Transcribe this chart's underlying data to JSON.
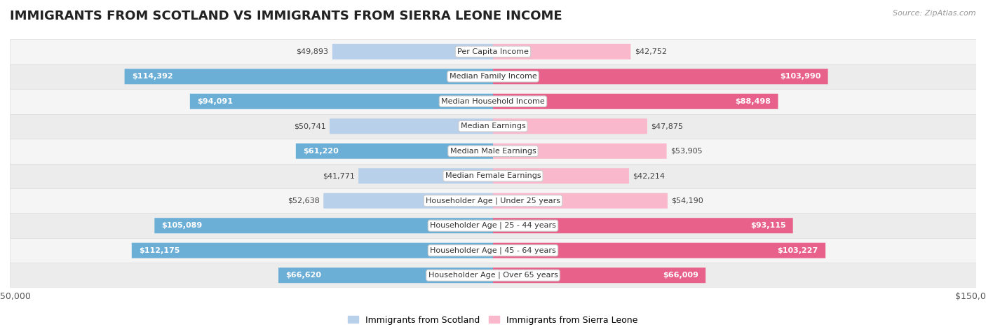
{
  "title": "IMMIGRANTS FROM SCOTLAND VS IMMIGRANTS FROM SIERRA LEONE INCOME",
  "source": "Source: ZipAtlas.com",
  "categories": [
    "Per Capita Income",
    "Median Family Income",
    "Median Household Income",
    "Median Earnings",
    "Median Male Earnings",
    "Median Female Earnings",
    "Householder Age | Under 25 years",
    "Householder Age | 25 - 44 years",
    "Householder Age | 45 - 64 years",
    "Householder Age | Over 65 years"
  ],
  "scotland_values": [
    49893,
    114392,
    94091,
    50741,
    61220,
    41771,
    52638,
    105089,
    112175,
    66620
  ],
  "sierraleone_values": [
    42752,
    103990,
    88498,
    47875,
    53905,
    42214,
    54190,
    93115,
    103227,
    66009
  ],
  "scotland_color_light": "#b8d0ea",
  "scotland_color_dark": "#6baed6",
  "sierraleone_color_light": "#f9b8cc",
  "sierraleone_color_dark": "#e8618a",
  "max_value": 150000,
  "background_color": "#ffffff",
  "row_bg_even": "#f5f5f5",
  "row_bg_odd": "#ececec",
  "row_border": "#dddddd",
  "label_box_color": "#ffffff",
  "title_fontsize": 13,
  "legend_scotland": "Immigrants from Scotland",
  "legend_sierraleone": "Immigrants from Sierra Leone",
  "inside_label_threshold": 55000,
  "bar_height": 0.62
}
